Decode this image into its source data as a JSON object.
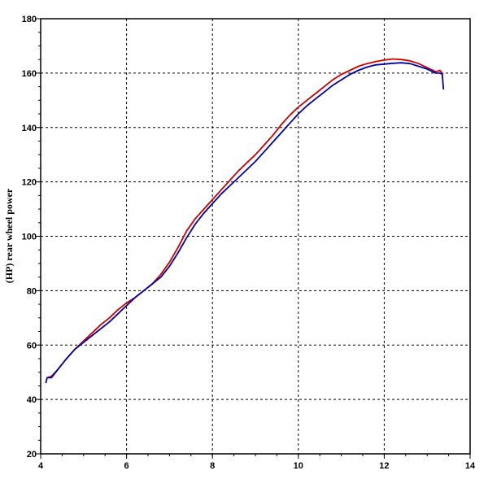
{
  "chart_data": {
    "type": "line",
    "title": "",
    "xlabel": "",
    "ylabel": "(HP) rear wheel power",
    "xlim": [
      4,
      14
    ],
    "ylim": [
      20,
      180
    ],
    "xticks": [
      "4",
      "6",
      "8",
      "10",
      "12",
      "14"
    ],
    "yticks": [
      "20",
      "40",
      "60",
      "80",
      "100",
      "120",
      "140",
      "160",
      "180"
    ],
    "grid": true,
    "series": [
      {
        "color": "#cc0000",
        "points": [
          [
            4.15,
            48
          ],
          [
            4.25,
            48.5
          ],
          [
            4.4,
            51
          ],
          [
            4.6,
            55
          ],
          [
            4.8,
            58.5
          ],
          [
            5.0,
            61.5
          ],
          [
            5.2,
            64.5
          ],
          [
            5.4,
            67.5
          ],
          [
            5.6,
            70
          ],
          [
            5.8,
            73
          ],
          [
            6.0,
            75.5
          ],
          [
            6.2,
            77.5
          ],
          [
            6.4,
            80
          ],
          [
            6.6,
            82.5
          ],
          [
            6.8,
            86
          ],
          [
            7.0,
            90.5
          ],
          [
            7.2,
            96
          ],
          [
            7.4,
            102
          ],
          [
            7.6,
            106.5
          ],
          [
            7.8,
            110
          ],
          [
            8.0,
            113.5
          ],
          [
            8.2,
            117
          ],
          [
            8.4,
            120.5
          ],
          [
            8.6,
            124
          ],
          [
            8.8,
            127
          ],
          [
            9.0,
            130
          ],
          [
            9.2,
            133.5
          ],
          [
            9.4,
            137
          ],
          [
            9.6,
            141
          ],
          [
            9.8,
            144.5
          ],
          [
            10.0,
            147.5
          ],
          [
            10.2,
            150
          ],
          [
            10.4,
            152.5
          ],
          [
            10.6,
            155
          ],
          [
            10.8,
            157.5
          ],
          [
            11.0,
            159.5
          ],
          [
            11.2,
            161
          ],
          [
            11.4,
            162.5
          ],
          [
            11.6,
            163.5
          ],
          [
            11.8,
            164.2
          ],
          [
            12.0,
            164.8
          ],
          [
            12.2,
            165.2
          ],
          [
            12.4,
            165
          ],
          [
            12.6,
            164.5
          ],
          [
            12.8,
            163.5
          ],
          [
            13.0,
            162
          ],
          [
            13.2,
            160.5
          ],
          [
            13.3,
            161
          ],
          [
            13.37,
            159.5
          ]
        ]
      },
      {
        "color": "#0000aa",
        "points": [
          [
            4.12,
            46
          ],
          [
            4.15,
            48
          ],
          [
            4.25,
            48
          ],
          [
            4.4,
            51
          ],
          [
            4.6,
            55
          ],
          [
            4.8,
            58.5
          ],
          [
            5.0,
            61
          ],
          [
            5.2,
            63.5
          ],
          [
            5.4,
            66
          ],
          [
            5.6,
            68.5
          ],
          [
            5.8,
            71.5
          ],
          [
            6.0,
            74.5
          ],
          [
            6.2,
            77.5
          ],
          [
            6.4,
            80
          ],
          [
            6.6,
            82.5
          ],
          [
            6.8,
            85
          ],
          [
            7.0,
            89
          ],
          [
            7.2,
            94
          ],
          [
            7.4,
            99.5
          ],
          [
            7.6,
            104.5
          ],
          [
            7.8,
            108.5
          ],
          [
            8.0,
            112
          ],
          [
            8.2,
            115.5
          ],
          [
            8.4,
            118.5
          ],
          [
            8.6,
            121.5
          ],
          [
            8.8,
            124.5
          ],
          [
            9.0,
            127.5
          ],
          [
            9.2,
            131
          ],
          [
            9.4,
            134.5
          ],
          [
            9.6,
            138
          ],
          [
            9.8,
            141.5
          ],
          [
            10.0,
            145
          ],
          [
            10.2,
            148
          ],
          [
            10.4,
            150.5
          ],
          [
            10.6,
            153
          ],
          [
            10.8,
            155.5
          ],
          [
            11.0,
            157.5
          ],
          [
            11.2,
            159.5
          ],
          [
            11.4,
            161
          ],
          [
            11.6,
            162.2
          ],
          [
            11.8,
            163
          ],
          [
            12.0,
            163.3
          ],
          [
            12.2,
            163.6
          ],
          [
            12.4,
            163.8
          ],
          [
            12.6,
            163.5
          ],
          [
            12.8,
            162.5
          ],
          [
            13.0,
            161.5
          ],
          [
            13.2,
            160
          ],
          [
            13.3,
            160
          ],
          [
            13.35,
            159.5
          ],
          [
            13.38,
            154
          ]
        ]
      }
    ]
  }
}
